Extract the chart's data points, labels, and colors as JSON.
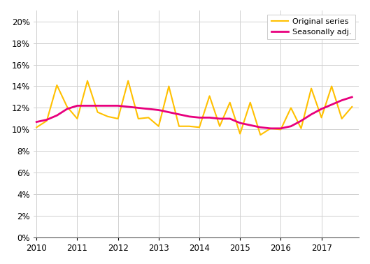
{
  "title": "",
  "xlabel": "",
  "ylabel": "",
  "ylim": [
    0,
    0.21
  ],
  "yticks": [
    0.0,
    0.02,
    0.04,
    0.06,
    0.08,
    0.1,
    0.12,
    0.14,
    0.16,
    0.18,
    0.2
  ],
  "xtick_years": [
    2010,
    2011,
    2012,
    2013,
    2014,
    2015,
    2016,
    2017
  ],
  "background_color": "#ffffff",
  "grid_color": "#d0d0d0",
  "original_color": "#FFC000",
  "seasonal_color": "#E8007D",
  "original_linewidth": 1.5,
  "seasonal_linewidth": 2.0,
  "legend_labels": [
    "Original series",
    "Seasonally adj."
  ],
  "xlim_left": 2009.92,
  "xlim_right": 2017.92,
  "x": [
    2010.0,
    2010.25,
    2010.5,
    2010.75,
    2011.0,
    2011.25,
    2011.5,
    2011.75,
    2012.0,
    2012.25,
    2012.5,
    2012.75,
    2013.0,
    2013.25,
    2013.5,
    2013.75,
    2014.0,
    2014.25,
    2014.5,
    2014.75,
    2015.0,
    2015.25,
    2015.5,
    2015.75,
    2016.0,
    2016.25,
    2016.5,
    2016.75,
    2017.0,
    2017.25,
    2017.5,
    2017.75
  ],
  "original": [
    0.102,
    0.108,
    0.141,
    0.121,
    0.11,
    0.145,
    0.116,
    0.112,
    0.11,
    0.145,
    0.11,
    0.111,
    0.103,
    0.14,
    0.103,
    0.103,
    0.102,
    0.131,
    0.103,
    0.125,
    0.096,
    0.125,
    0.095,
    0.101,
    0.1,
    0.12,
    0.101,
    0.138,
    0.111,
    0.14,
    0.11,
    0.121
  ],
  "seasonal": [
    0.107,
    0.109,
    0.113,
    0.119,
    0.122,
    0.122,
    0.122,
    0.122,
    0.122,
    0.121,
    0.12,
    0.119,
    0.118,
    0.116,
    0.114,
    0.112,
    0.111,
    0.111,
    0.11,
    0.11,
    0.106,
    0.104,
    0.102,
    0.101,
    0.101,
    0.103,
    0.108,
    0.114,
    0.119,
    0.123,
    0.127,
    0.13
  ]
}
